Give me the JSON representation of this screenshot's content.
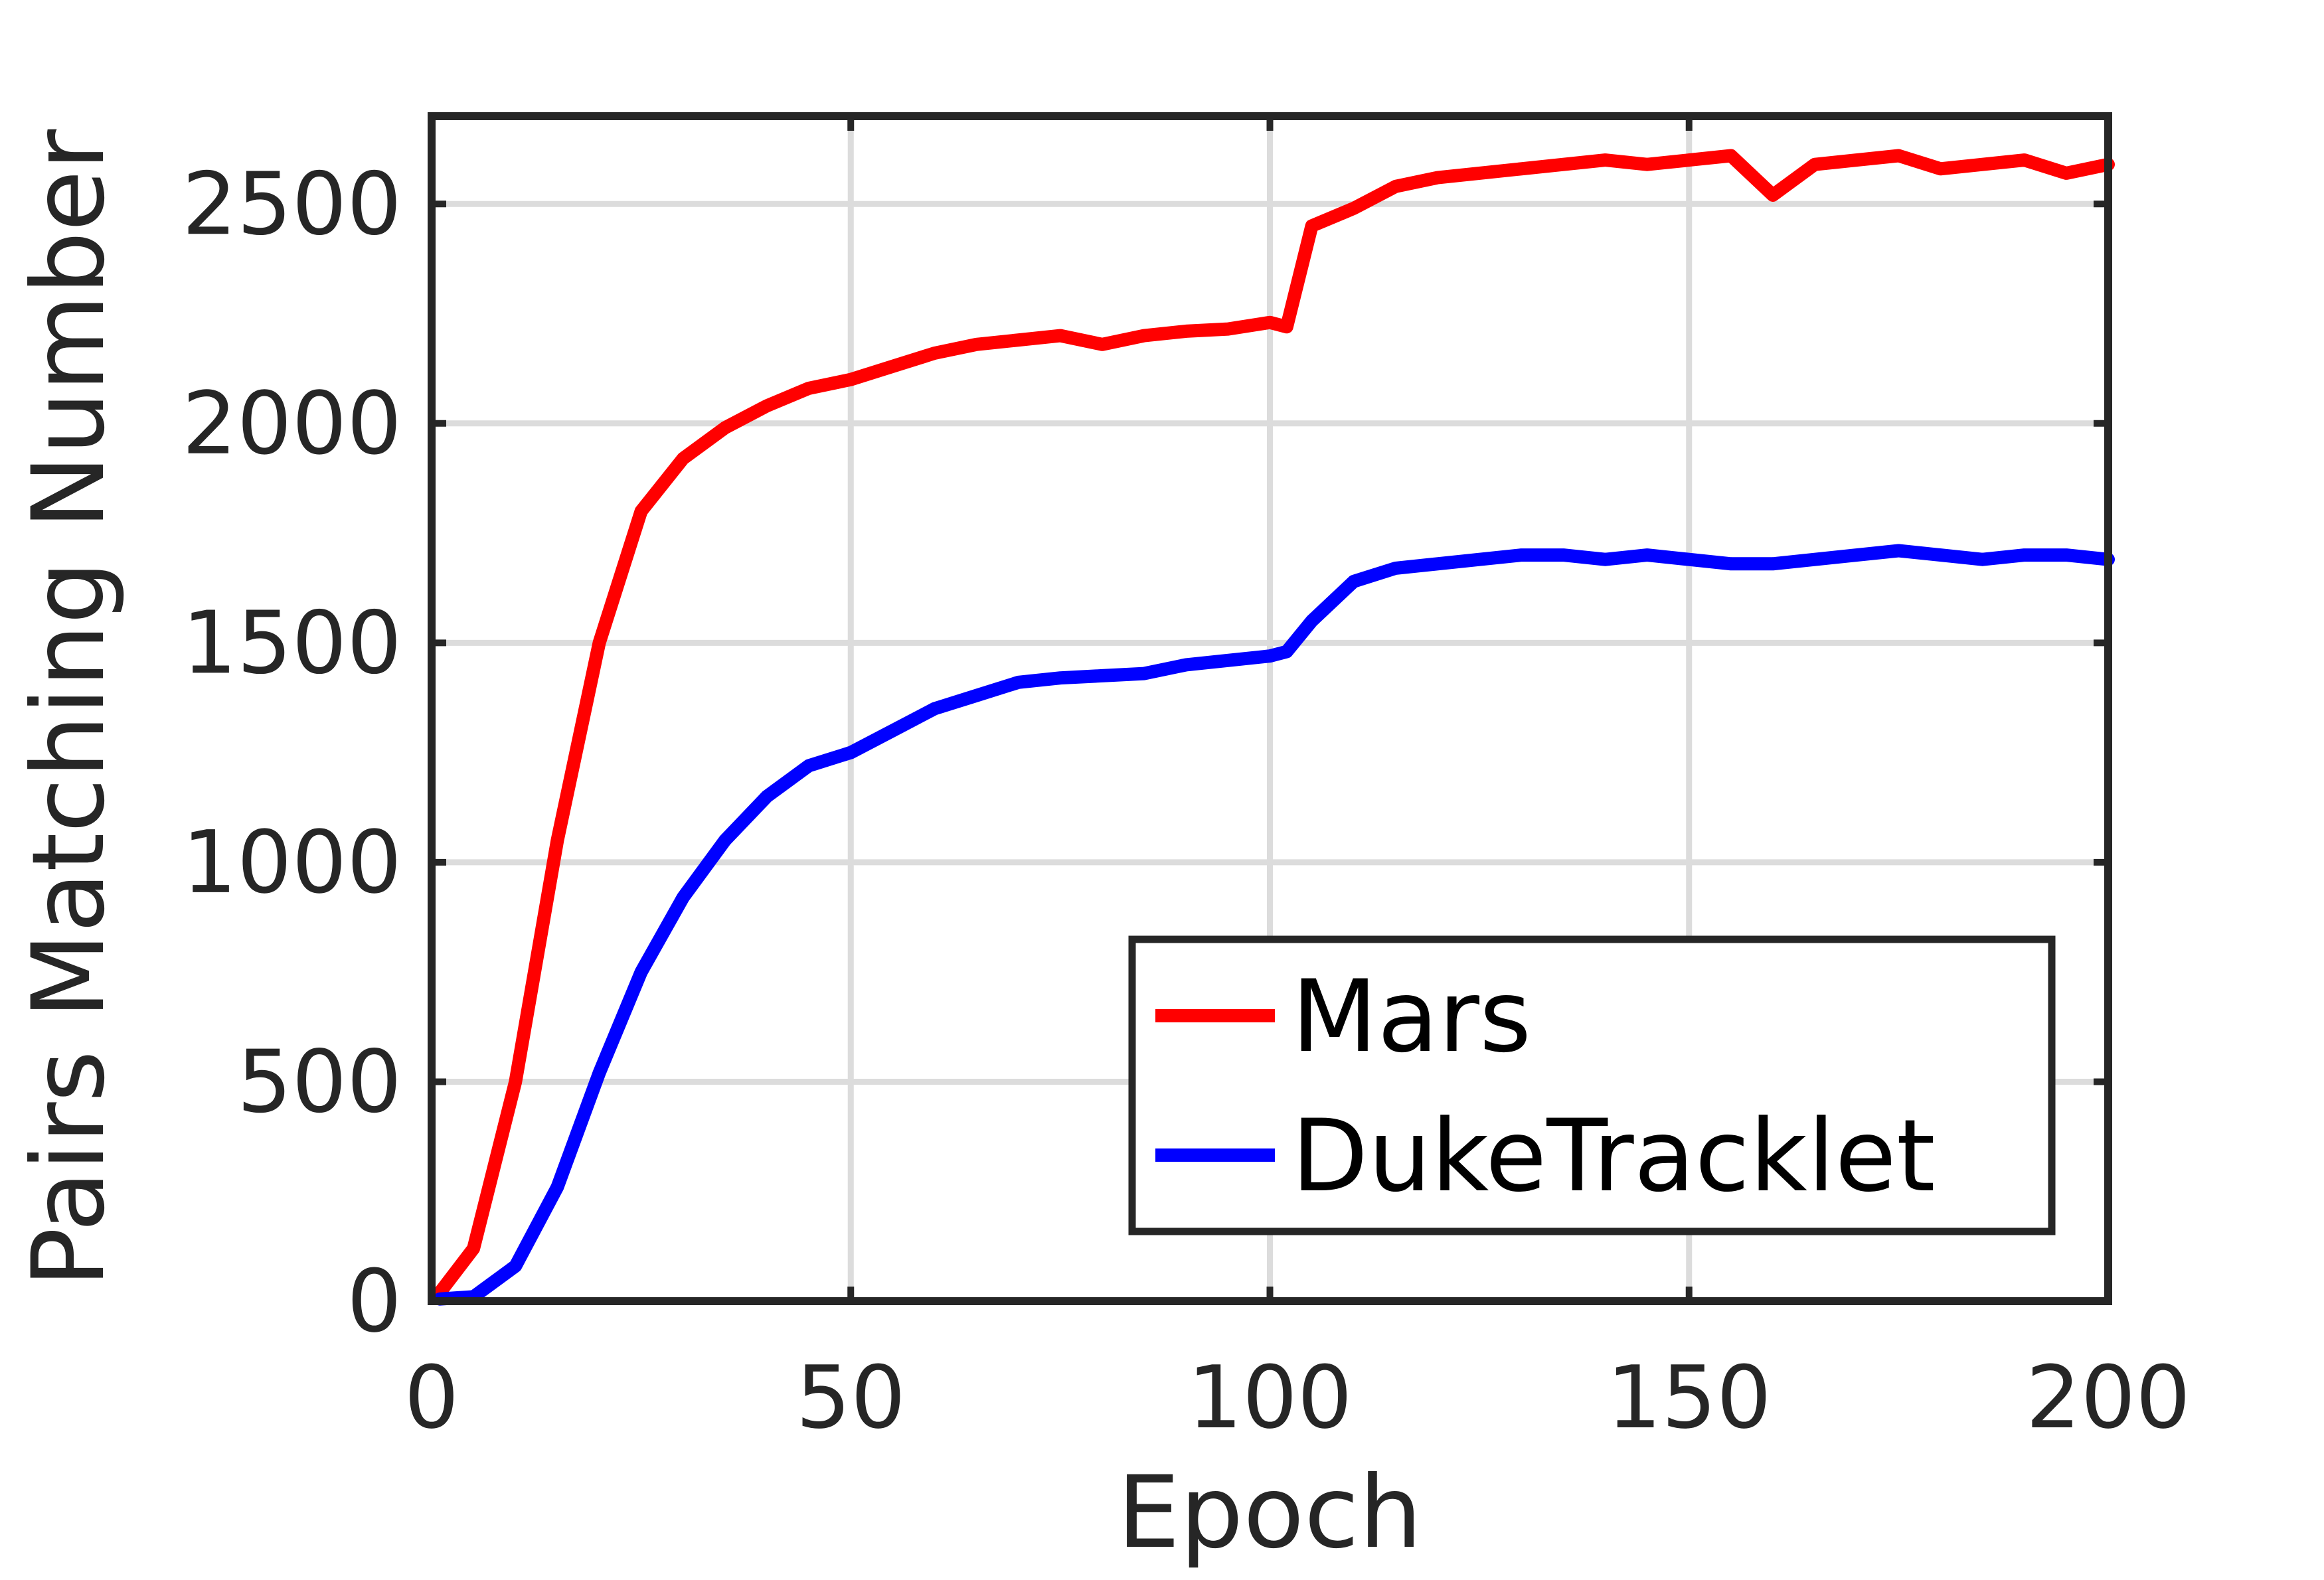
{
  "chart_data": {
    "type": "line",
    "xlabel": "Epoch",
    "ylabel": "Pairs Matching Number",
    "xlim": [
      0,
      200
    ],
    "ylim": [
      0,
      2700
    ],
    "xticks": [
      0,
      50,
      100,
      150,
      200
    ],
    "yticks": [
      0,
      500,
      1000,
      1500,
      2000,
      2500
    ],
    "xtick_labels": [
      "0",
      "50",
      "100",
      "150",
      "200"
    ],
    "ytick_labels": [
      "0",
      "500",
      "1000",
      "1500",
      "2000",
      "2500"
    ],
    "grid": true,
    "legend_position": "bottom-right",
    "x": [
      1,
      5,
      10,
      15,
      20,
      25,
      30,
      35,
      40,
      45,
      50,
      55,
      60,
      65,
      70,
      75,
      80,
      85,
      90,
      95,
      100,
      102,
      105,
      110,
      115,
      120,
      125,
      130,
      135,
      140,
      145,
      150,
      155,
      160,
      165,
      170,
      175,
      180,
      185,
      190,
      195,
      200
    ],
    "series": [
      {
        "name": "Mars",
        "color": "#ff0000",
        "values": [
          20,
          120,
          500,
          1050,
          1500,
          1800,
          1920,
          1990,
          2040,
          2080,
          2100,
          2130,
          2160,
          2180,
          2190,
          2200,
          2180,
          2200,
          2210,
          2215,
          2230,
          2220,
          2450,
          2490,
          2540,
          2560,
          2570,
          2580,
          2590,
          2600,
          2590,
          2600,
          2610,
          2520,
          2590,
          2600,
          2610,
          2580,
          2590,
          2600,
          2570,
          2590
        ]
      },
      {
        "name": "DukeTracklet",
        "color": "#0000ff",
        "values": [
          5,
          10,
          80,
          260,
          520,
          750,
          920,
          1050,
          1150,
          1220,
          1250,
          1300,
          1350,
          1380,
          1410,
          1420,
          1425,
          1430,
          1450,
          1460,
          1470,
          1480,
          1550,
          1640,
          1670,
          1680,
          1690,
          1700,
          1700,
          1690,
          1700,
          1690,
          1680,
          1680,
          1690,
          1700,
          1710,
          1700,
          1690,
          1700,
          1700,
          1690
        ]
      }
    ]
  }
}
